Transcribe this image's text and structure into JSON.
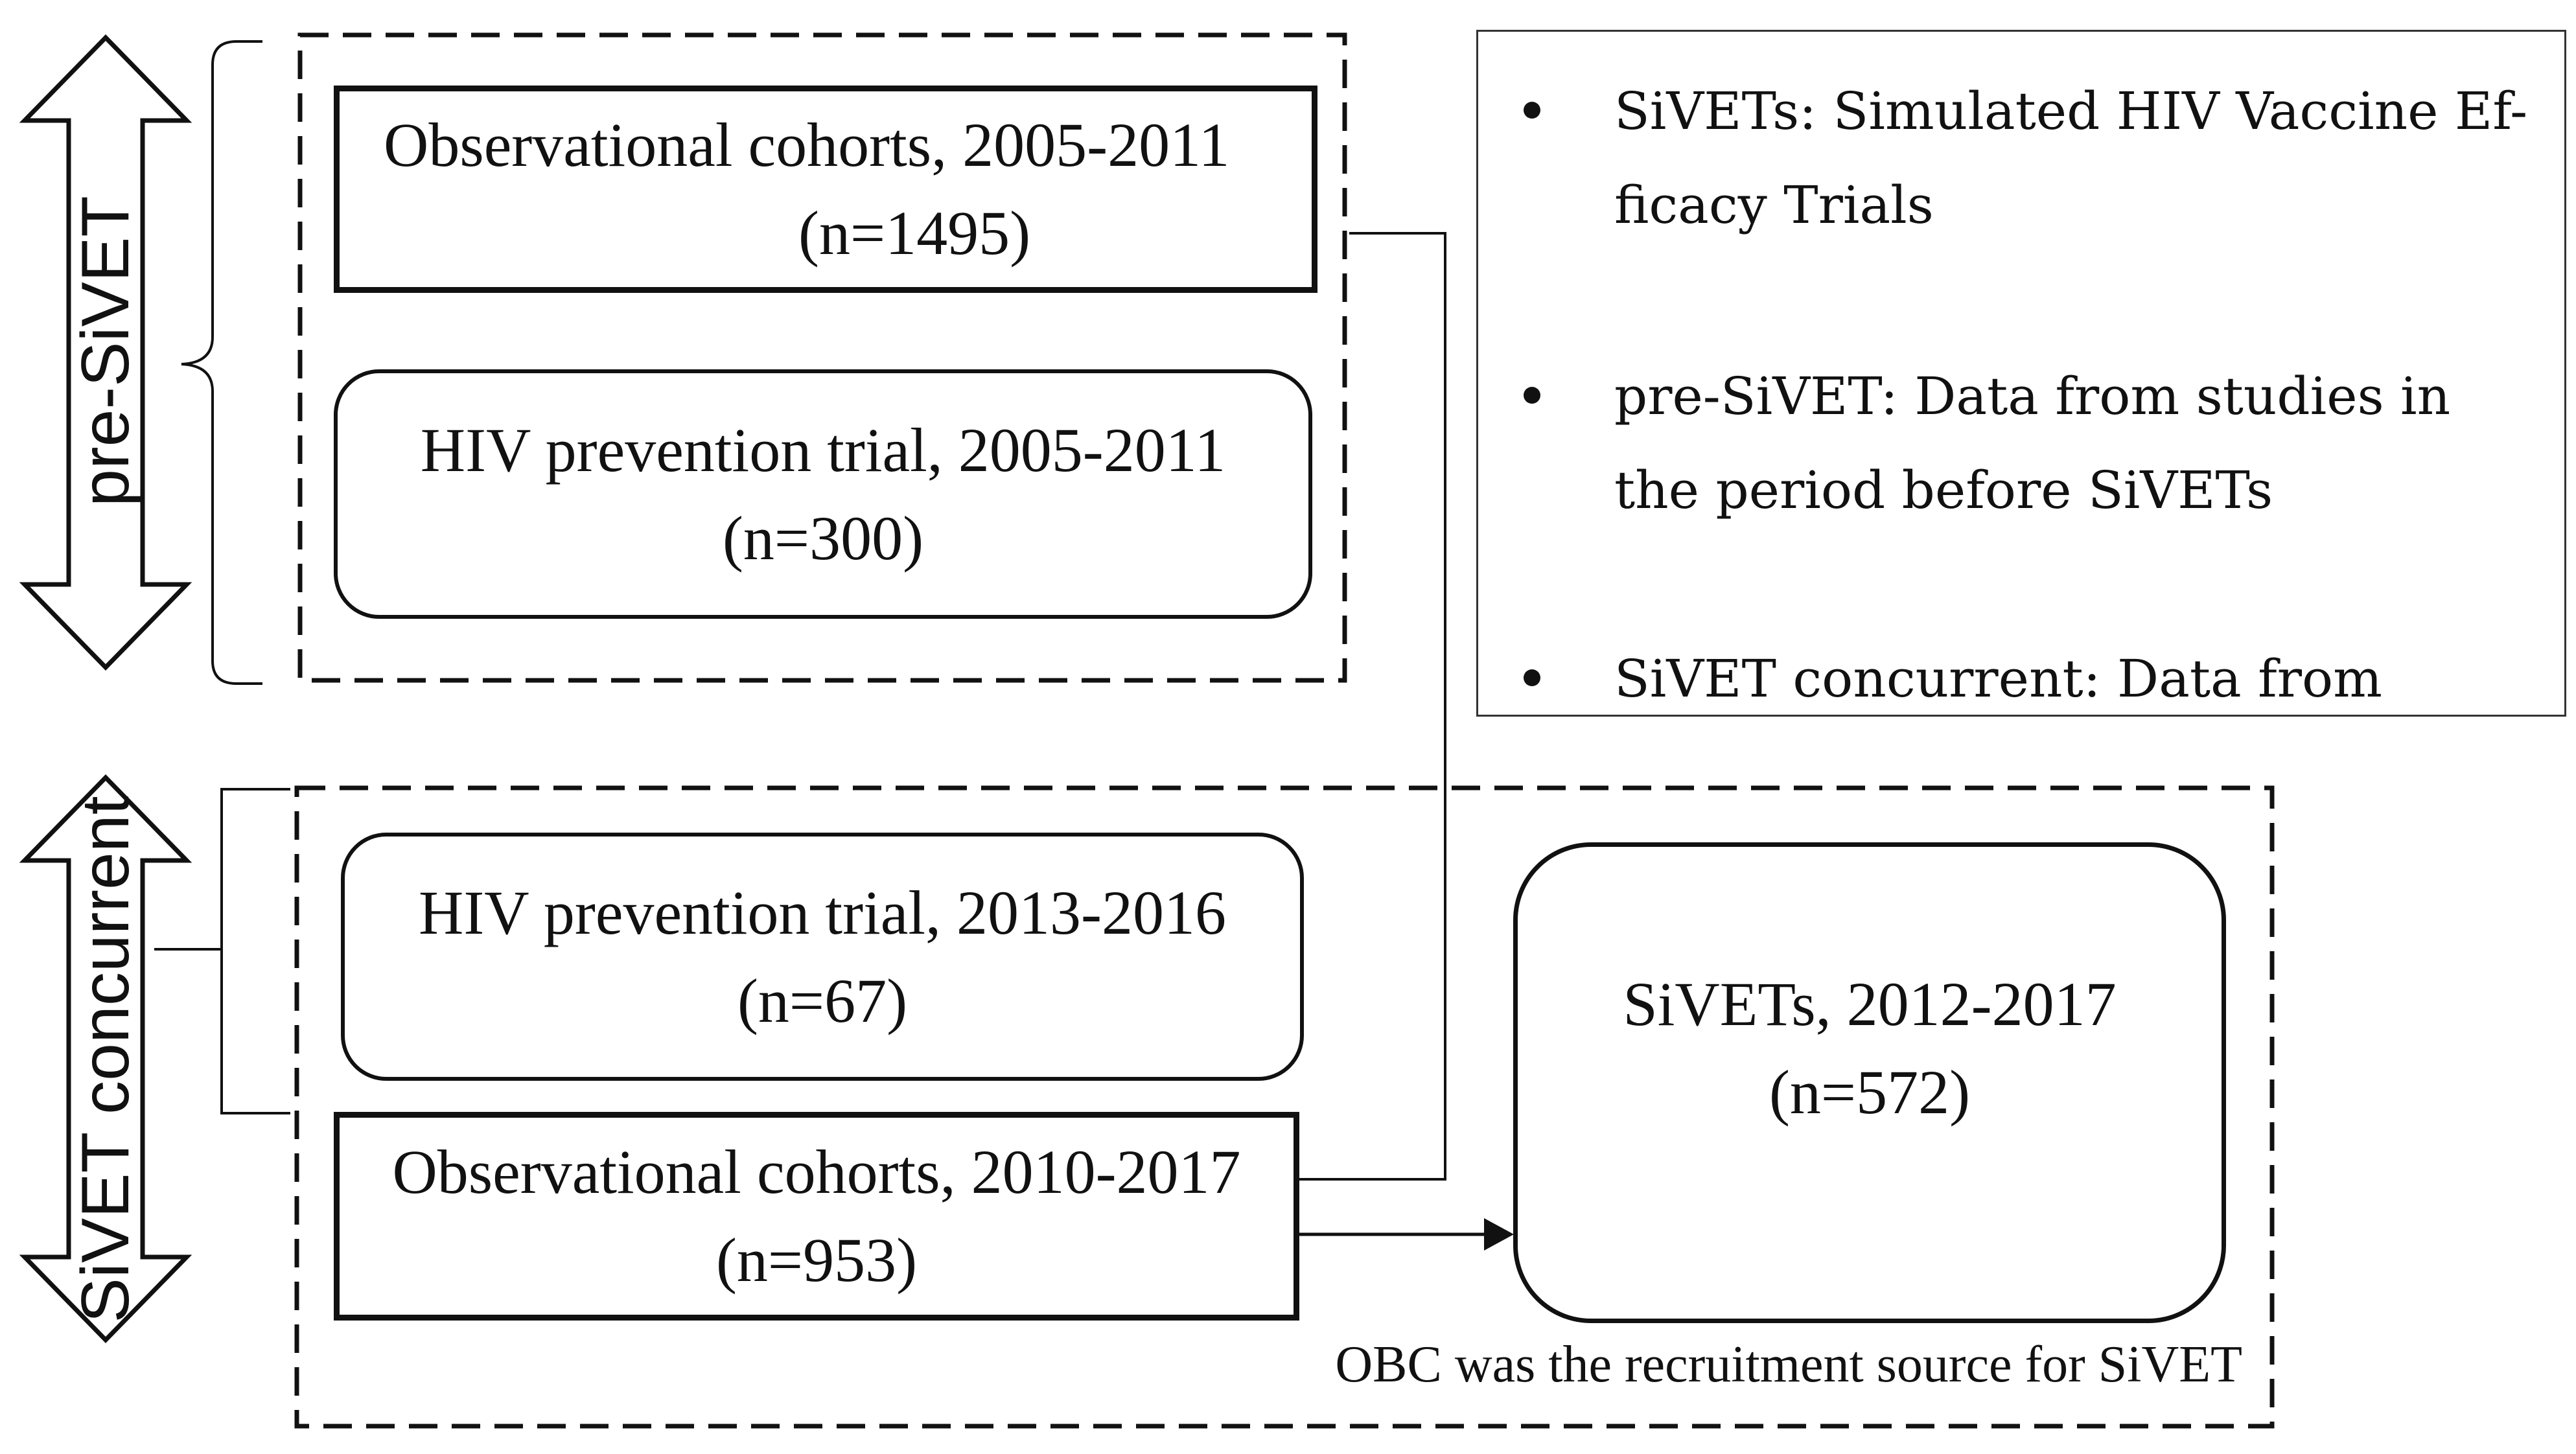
{
  "diagram": {
    "periods": {
      "pre_sivet": "pre-SiVET",
      "sivet_concurrent": "SiVET concurrent"
    },
    "boxes": {
      "obs_cohorts_early": {
        "line1": "Observational cohorts, 2005-2011",
        "line2": "(n=1495)"
      },
      "hiv_trial_early": {
        "line1": "HIV prevention trial, 2005-2011",
        "line2": "(n=300)"
      },
      "hiv_trial_late": {
        "line1": "HIV prevention trial, 2013-2016",
        "line2": "(n=67)"
      },
      "obs_cohorts_late": {
        "line1": "Observational cohorts, 2010-2017",
        "line2": "(n=953)"
      },
      "sivets": {
        "line1": "SiVETs, 2012-2017",
        "line2": "(n=572)"
      }
    },
    "legend": [
      "SiVETs: Simulated HIV Vaccine Ef-ficacy Trials",
      "pre-SiVET: Data from studies in the period before SiVETs",
      "SiVET concurrent: Data from studies"
    ],
    "note": "OBC was the recruitment source for SiVET"
  }
}
